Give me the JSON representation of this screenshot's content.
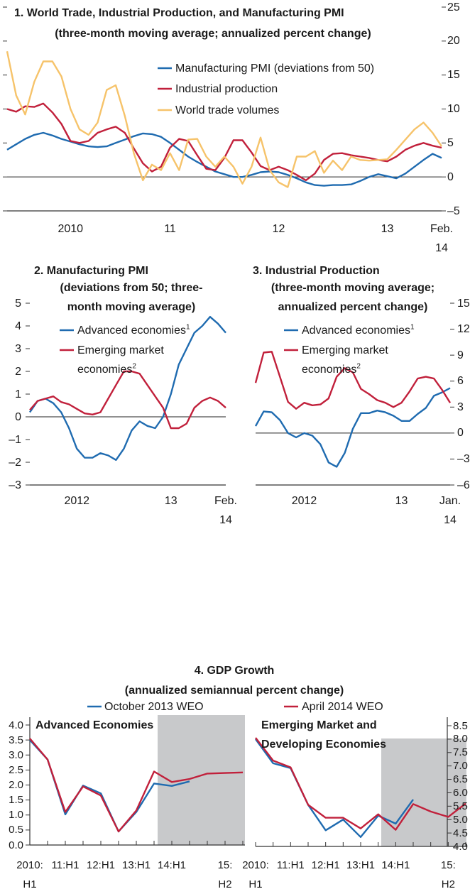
{
  "chart_data": [
    {
      "type": "line",
      "title": "1. World Trade, Industrial Production, and Manufacturing PMI",
      "subtitle": "(three-month moving average; annualized percent change)",
      "categories": [
        null,
        null,
        null,
        null,
        null,
        null,
        null,
        "2010",
        null,
        null,
        null,
        null,
        null,
        null,
        null,
        null,
        null,
        null,
        "11",
        null,
        null,
        null,
        null,
        null,
        null,
        null,
        null,
        null,
        null,
        null,
        "12",
        null,
        null,
        null,
        null,
        null,
        null,
        null,
        null,
        null,
        null,
        null,
        "13",
        null,
        null,
        null,
        null,
        null,
        "Feb. 14"
      ],
      "series": [
        {
          "name": "Manufacturing PMI (deviations from 50)",
          "color": "#1f6bb0",
          "values": [
            4.0,
            4.8,
            5.6,
            6.2,
            6.5,
            6.1,
            5.6,
            5.2,
            4.8,
            4.5,
            4.4,
            4.5,
            5.0,
            5.5,
            6.0,
            6.4,
            6.3,
            5.9,
            5.0,
            4.0,
            3.0,
            2.2,
            1.5,
            0.8,
            0.4,
            0.0,
            0.0,
            0.3,
            0.7,
            0.8,
            0.7,
            0.3,
            -0.2,
            -0.8,
            -1.2,
            -1.3,
            -1.2,
            -1.2,
            -1.1,
            -0.6,
            0.0,
            0.4,
            0.1,
            -0.2,
            0.5,
            1.5,
            2.5,
            3.4,
            2.8
          ]
        },
        {
          "name": "Industrial production",
          "color": "#c1203b",
          "values": [
            10.0,
            9.6,
            10.4,
            10.3,
            10.8,
            9.5,
            7.8,
            5.3,
            5.0,
            5.3,
            6.5,
            7.0,
            7.4,
            6.5,
            4.2,
            2.0,
            0.8,
            1.5,
            4.3,
            5.6,
            5.3,
            3.2,
            1.2,
            1.0,
            2.8,
            5.4,
            5.4,
            3.6,
            1.6,
            1.0,
            1.5,
            1.0,
            0.3,
            -0.5,
            0.5,
            2.5,
            3.4,
            3.5,
            3.2,
            3.0,
            2.8,
            2.5,
            2.3,
            3.0,
            4.0,
            4.6,
            5.0,
            4.6,
            4.3
          ]
        },
        {
          "name": "World trade volumes",
          "color": "#f6c36a",
          "values": [
            18.5,
            12.0,
            9.2,
            14.0,
            17.0,
            17.0,
            14.8,
            10.0,
            7.0,
            6.2,
            8.0,
            12.8,
            13.5,
            9.0,
            3.5,
            -0.5,
            1.8,
            1.0,
            3.5,
            1.0,
            5.5,
            5.6,
            3.0,
            1.5,
            3.0,
            1.5,
            -1.0,
            1.5,
            5.8,
            1.0,
            -0.8,
            -1.5,
            3.0,
            3.0,
            3.8,
            0.6,
            2.4,
            1.0,
            3.0,
            2.5,
            2.4,
            2.5,
            2.6,
            4.0,
            5.5,
            7.0,
            8.0,
            6.5,
            4.5
          ]
        }
      ],
      "ylim": [
        -5,
        25
      ],
      "yticks": [
        {
          "value": -5,
          "label": "–5"
        },
        0,
        5,
        10,
        15,
        20,
        25
      ]
    },
    {
      "type": "line",
      "title": "2. Manufacturing PMI",
      "subtitle": [
        "(deviations from 50; three-",
        "month moving average)"
      ],
      "categories": [
        null,
        null,
        null,
        null,
        null,
        null,
        "2012",
        null,
        null,
        null,
        null,
        null,
        null,
        null,
        null,
        null,
        null,
        null,
        "13",
        null,
        null,
        null,
        null,
        null,
        null,
        "Feb. 14"
      ],
      "series": [
        {
          "name": "Advanced economies",
          "footnote": "1",
          "color": "#1f6bb0",
          "values": [
            0.2,
            0.7,
            0.8,
            0.6,
            0.2,
            -0.5,
            -1.4,
            -1.8,
            -1.8,
            -1.6,
            -1.7,
            -1.9,
            -1.4,
            -0.6,
            -0.2,
            -0.4,
            -0.5,
            0.0,
            1.0,
            2.3,
            3.0,
            3.7,
            4.0,
            4.4,
            4.1,
            3.7
          ]
        },
        {
          "name": "Emerging market economies",
          "footnote": "2",
          "color": "#c1203b",
          "values": [
            0.3,
            0.7,
            0.8,
            0.9,
            0.65,
            0.55,
            0.35,
            0.15,
            0.1,
            0.2,
            0.8,
            1.4,
            2.0,
            2.0,
            1.9,
            1.4,
            0.9,
            0.4,
            -0.5,
            -0.5,
            -0.3,
            0.4,
            0.7,
            0.85,
            0.7,
            0.4
          ]
        }
      ],
      "ylim": [
        -3,
        5
      ],
      "yticks": [
        {
          "value": -3,
          "label": "–3"
        },
        {
          "value": -2,
          "label": "–2"
        },
        {
          "value": -1,
          "label": "–1"
        },
        0,
        1,
        2,
        3,
        4,
        5
      ]
    },
    {
      "type": "line",
      "title": "3. Industrial Production",
      "subtitle": [
        "(three-month moving average;",
        "annualized percent change)"
      ],
      "categories": [
        null,
        null,
        null,
        null,
        null,
        null,
        "2012",
        null,
        null,
        null,
        null,
        null,
        null,
        null,
        null,
        null,
        null,
        null,
        "13",
        null,
        null,
        null,
        null,
        null,
        "Jan. 14"
      ],
      "series": [
        {
          "name": "Advanced economies",
          "footnote": "1",
          "color": "#1f6bb0",
          "values": [
            0.8,
            2.5,
            2.4,
            1.5,
            0.0,
            -0.5,
            0.0,
            -0.3,
            -1.3,
            -3.4,
            -3.9,
            -2.3,
            0.5,
            2.3,
            2.3,
            2.6,
            2.4,
            2.0,
            1.4,
            1.4,
            2.2,
            2.9,
            4.3,
            4.7,
            5.2
          ]
        },
        {
          "name": "Emerging market economies",
          "footnote": "2",
          "color": "#c1203b",
          "values": [
            5.8,
            9.3,
            9.4,
            6.5,
            3.6,
            2.8,
            3.5,
            3.2,
            3.3,
            4.0,
            6.5,
            7.5,
            7.0,
            5.1,
            4.5,
            3.8,
            3.5,
            3.0,
            3.5,
            4.8,
            6.3,
            6.5,
            6.3,
            5.0,
            3.5
          ]
        }
      ],
      "ylim": [
        -6,
        15
      ],
      "yticks": [
        {
          "value": -6,
          "label": "–6"
        },
        {
          "value": -3,
          "label": "–3"
        },
        0,
        3,
        6,
        9,
        12,
        15
      ]
    },
    {
      "type": "line",
      "title": "4. GDP Growth",
      "subtitle": "(annualized semiannual percent change)",
      "panel_title": "Advanced Economies",
      "categories": [
        "2010: H1",
        null,
        "11:H1",
        null,
        "12:H1",
        null,
        "13:H1",
        null,
        "14:H1",
        null,
        null,
        "15: H2",
        null
      ],
      "series": [
        {
          "name": "October 2013 WEO",
          "color": "#1f6bb0",
          "values": [
            3.5,
            2.85,
            1.02,
            1.98,
            1.72,
            0.45,
            1.1,
            2.05,
            1.97,
            2.12,
            null,
            null,
            null
          ]
        },
        {
          "name": "April 2014 WEO",
          "color": "#c1203b",
          "values": [
            3.55,
            2.85,
            1.1,
            1.95,
            1.65,
            0.45,
            1.15,
            2.45,
            2.1,
            2.2,
            2.38,
            2.4,
            2.42
          ]
        }
      ],
      "ylim": [
        0,
        4
      ],
      "yticks": [
        {
          "value": 0,
          "label": "0.0"
        },
        0.5,
        {
          "value": 1,
          "label": "1.0"
        },
        1.5,
        {
          "value": 2,
          "label": "2.0"
        },
        2.5,
        {
          "value": 3,
          "label": "3.0"
        },
        3.5,
        {
          "value": 4,
          "label": "4.0"
        }
      ]
    },
    {
      "type": "line",
      "panel_title": "Emerging Market and Developing Economies",
      "categories": [
        "2010: H1",
        null,
        "11:H1",
        null,
        "12:H1",
        null,
        "13:H1",
        null,
        "14:H1",
        null,
        null,
        "15: H2",
        null
      ],
      "series": [
        {
          "color": "#1f6bb0",
          "values": [
            8.0,
            7.1,
            6.92,
            5.55,
            4.6,
            5.0,
            4.35,
            5.15,
            4.85,
            5.75,
            null,
            null,
            null
          ]
        },
        {
          "color": "#c1203b",
          "values": [
            8.05,
            7.2,
            6.95,
            5.55,
            5.07,
            5.07,
            4.67,
            5.2,
            4.62,
            5.58,
            5.3,
            5.1,
            5.6
          ]
        }
      ],
      "ylim": [
        4,
        8.5
      ],
      "yticks": [
        {
          "value": 4,
          "label": "4.0"
        },
        4.5,
        {
          "value": 5,
          "label": "5.0"
        },
        5.5,
        {
          "value": 6,
          "label": "6.0"
        },
        6.5,
        {
          "value": 7,
          "label": "7.0"
        },
        7.5,
        {
          "value": 8,
          "label": "8.0"
        },
        8.5
      ]
    }
  ]
}
